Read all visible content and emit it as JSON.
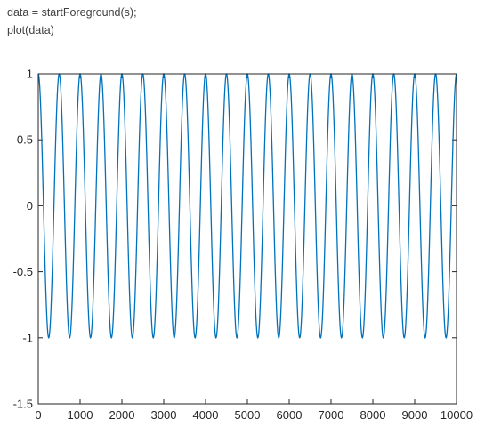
{
  "code": {
    "line1": "data = startForeground(s);",
    "line2": "plot(data)"
  },
  "chart_data": {
    "type": "line",
    "title": "",
    "xlabel": "",
    "ylabel": "",
    "xlim": [
      0,
      10000
    ],
    "ylim": [
      -1.5,
      1
    ],
    "xticks": [
      0,
      1000,
      2000,
      3000,
      4000,
      5000,
      6000,
      7000,
      8000,
      9000,
      10000
    ],
    "xtick_labels": [
      "0",
      "1000",
      "2000",
      "3000",
      "4000",
      "5000",
      "6000",
      "7000",
      "8000",
      "9000",
      "10000"
    ],
    "yticks": [
      -1.5,
      -1,
      -0.5,
      0,
      0.5,
      1
    ],
    "ytick_labels": [
      "-1.5",
      "-1",
      "-0.5",
      "0",
      "0.5",
      "1"
    ],
    "grid": false,
    "series": [
      {
        "color": "#0072bd",
        "function": "cos",
        "amplitude": 1,
        "period": 500,
        "x_start": 0,
        "x_end": 10000
      }
    ]
  }
}
